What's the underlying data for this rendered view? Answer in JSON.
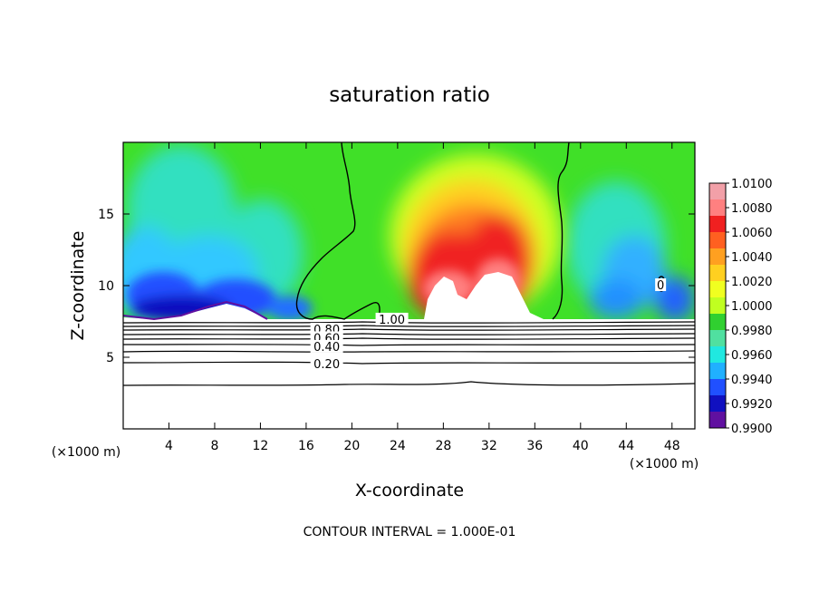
{
  "chart_data": {
    "type": "heatmap",
    "title": "saturation ratio",
    "xlabel": "X-coordinate",
    "ylabel": "Z-coordinate",
    "x_unit": "(×1000 m)",
    "xlim": [
      0,
      50
    ],
    "ylim": [
      0,
      20
    ],
    "x_ticks": [
      4,
      8,
      12,
      16,
      20,
      24,
      28,
      32,
      36,
      40,
      44,
      48
    ],
    "y_ticks": [
      5,
      10,
      15
    ],
    "footer": "CONTOUR INTERVAL = 1.000E-01",
    "colorbar": {
      "min": 0.99,
      "max": 1.01,
      "labels": [
        "1.0100",
        "1.0080",
        "1.0060",
        "1.0040",
        "1.0020",
        "1.0000",
        "0.9980",
        "0.9960",
        "0.9940",
        "0.9920",
        "0.9900"
      ],
      "colors": [
        "#f2a0a8",
        "#ff8080",
        "#f02020",
        "#ff6020",
        "#ffa020",
        "#ffd020",
        "#f0ff20",
        "#c0ff20",
        "#30d030",
        "#50e0a0",
        "#20e8e0",
        "#20b0ff",
        "#2050ff",
        "#1010c0",
        "#6010a0"
      ]
    },
    "contour_labels": [
      {
        "text": "1.00",
        "x": 23.5,
        "z": 7.6
      },
      {
        "text": "0.80",
        "x": 17.8,
        "z": 6.9
      },
      {
        "text": "0.60",
        "x": 17.8,
        "z": 6.3
      },
      {
        "text": "0.40",
        "x": 17.8,
        "z": 5.7
      },
      {
        "text": "0.20",
        "x": 17.8,
        "z": 4.5
      },
      {
        "text": "0",
        "x": 47,
        "z": 10
      }
    ],
    "contour_levels_z": [
      3.0,
      4.6,
      5.4,
      5.8,
      6.1,
      6.4,
      6.7,
      6.9,
      7.1
    ],
    "ground_z": 7.3
  }
}
